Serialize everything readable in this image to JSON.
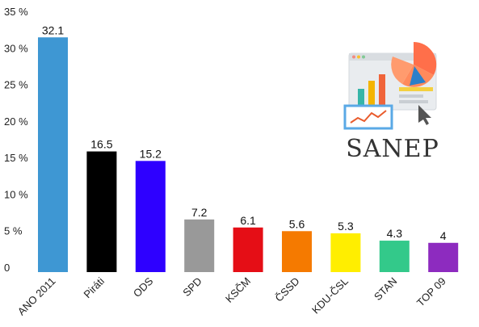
{
  "chart_data": {
    "type": "bar",
    "categories": [
      "ANO 2011",
      "Piráti",
      "ODS",
      "SPD",
      "KSČM",
      "ČSSD",
      "KDU-ČSL",
      "STAN",
      "TOP 09"
    ],
    "values": [
      32.1,
      16.5,
      15.2,
      7.2,
      6.1,
      5.6,
      5.3,
      4.3,
      4
    ],
    "value_labels": [
      "32.1",
      "16.5",
      "15.2",
      "7.2",
      "6.1",
      "5.6",
      "5.3",
      "4.3",
      "4"
    ],
    "colors": [
      "#3e97d3",
      "#000000",
      "#2e00ff",
      "#999999",
      "#e50e16",
      "#f57a00",
      "#ffee00",
      "#33c98a",
      "#8d2bbf"
    ],
    "yticks": [
      "0",
      "5 %",
      "10 %",
      "15 %",
      "20 %",
      "25 %",
      "30 %",
      "35 %"
    ],
    "ylim": [
      0,
      35
    ],
    "grid": false,
    "title": "",
    "xlabel": "",
    "ylabel": ""
  },
  "logo": {
    "text": "SANEP",
    "icon": "analytics-dashboard-icon"
  }
}
